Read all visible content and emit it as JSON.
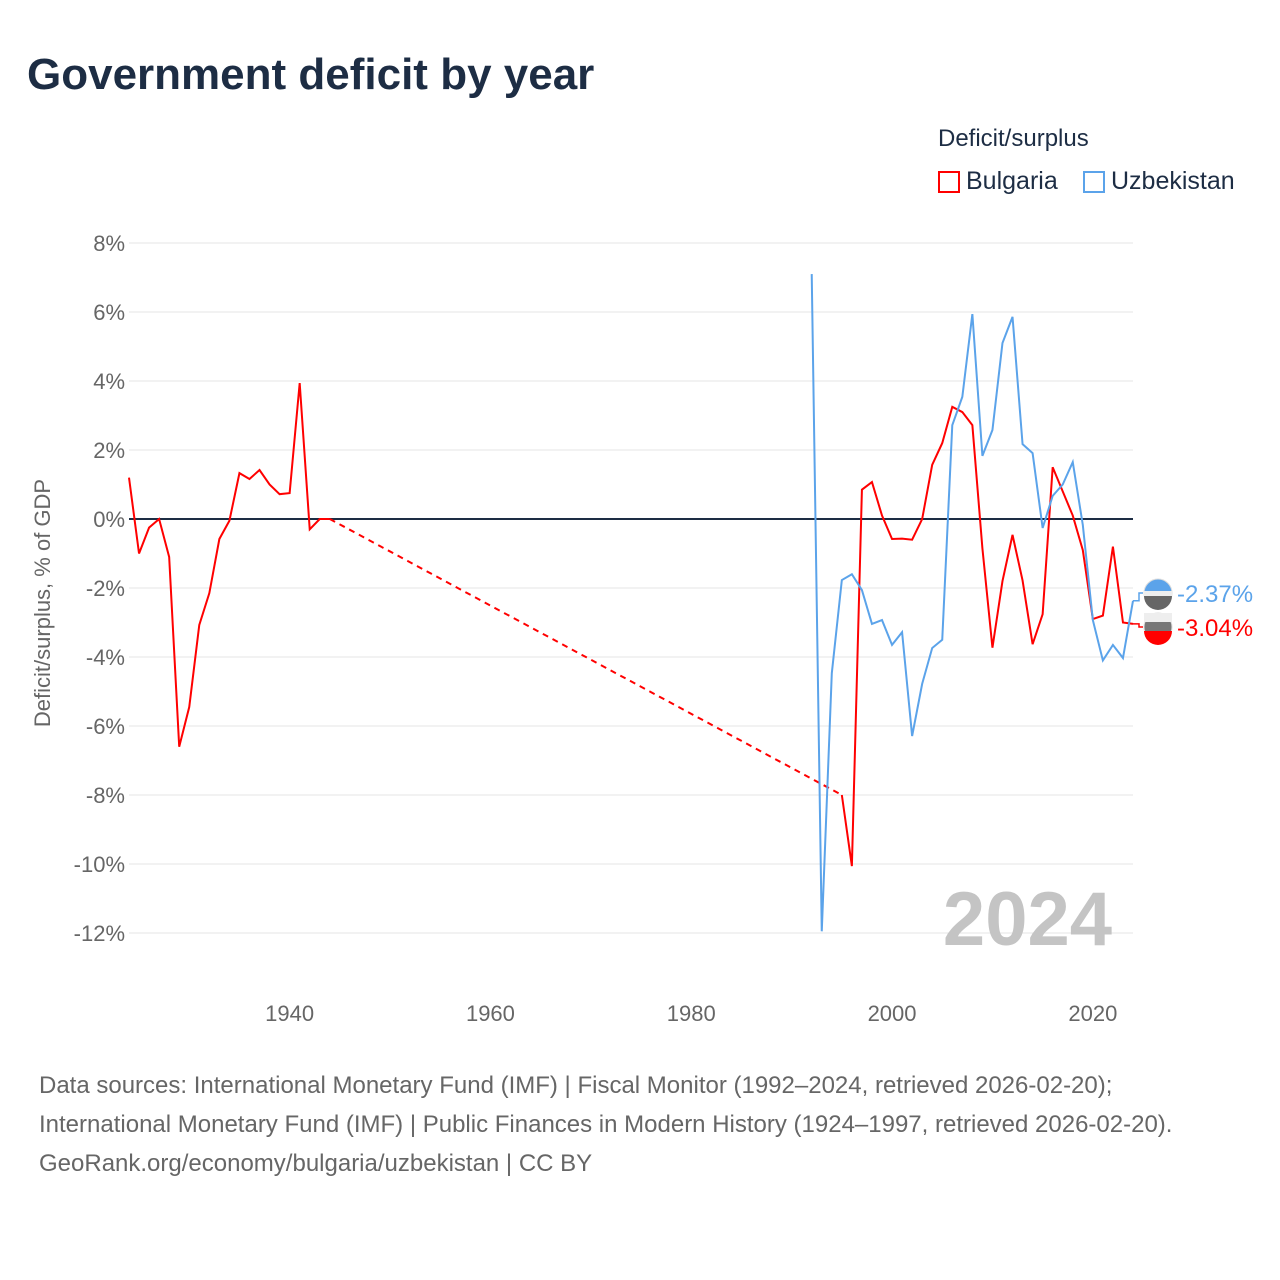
{
  "title": "Government deficit by year",
  "legend": {
    "title": "Deficit/surplus",
    "items": [
      {
        "name": "Bulgaria",
        "color": "#ff0000"
      },
      {
        "name": "Uzbekistan",
        "color": "#5ba3ea"
      }
    ]
  },
  "watermark_year": "2024",
  "footer": {
    "sources": "Data sources: International Monetary Fund (IMF) | Fiscal Monitor (1992–2024, retrieved 2026-02-20); International Monetary Fund (IMF) | Public Finances in Modern History (1924–1997, retrieved 2026-02-20).",
    "credit": "GeoRank.org/economy/bulgaria/uzbekistan | CC BY"
  },
  "chart_data": {
    "type": "line",
    "title": "Government deficit by year",
    "xlabel": "",
    "ylabel": "Deficit/surplus, % of GDP",
    "xlim": [
      1924,
      2024
    ],
    "ylim": [
      -12,
      8
    ],
    "x_ticks": [
      1940,
      1960,
      1980,
      2000,
      2020
    ],
    "y_ticks": [
      {
        "v": 8,
        "label": "8%"
      },
      {
        "v": 6,
        "label": "6%"
      },
      {
        "v": 4,
        "label": "4%"
      },
      {
        "v": 2,
        "label": "2%"
      },
      {
        "v": 0,
        "label": "0%"
      },
      {
        "v": -2,
        "label": "-2%"
      },
      {
        "v": -4,
        "label": "-4%"
      },
      {
        "v": -6,
        "label": "-6%"
      },
      {
        "v": -8,
        "label": "-8%"
      },
      {
        "v": -10,
        "label": "-10%"
      },
      {
        "v": -12,
        "label": "-12%"
      }
    ],
    "series": [
      {
        "name": "Bulgaria",
        "color": "#ff0000",
        "end_label": "-3.04%",
        "gap": [
          1944,
          1995
        ],
        "x": [
          1924,
          1925,
          1926,
          1927,
          1928,
          1929,
          1930,
          1931,
          1932,
          1933,
          1934,
          1935,
          1936,
          1937,
          1938,
          1939,
          1940,
          1941,
          1942,
          1943,
          1944,
          1995,
          1996,
          1997,
          1998,
          1999,
          2000,
          2001,
          2002,
          2003,
          2004,
          2005,
          2006,
          2007,
          2008,
          2009,
          2010,
          2011,
          2012,
          2013,
          2014,
          2015,
          2016,
          2017,
          2018,
          2019,
          2020,
          2021,
          2022,
          2023,
          2024
        ],
        "y": [
          1.2,
          -1.0,
          -0.25,
          0,
          -1.1,
          -6.6,
          -5.45,
          -3.07,
          -2.15,
          -0.58,
          -0.05,
          1.33,
          1.16,
          1.42,
          1.0,
          0.72,
          0.75,
          3.94,
          -0.3,
          0,
          0,
          -8.0,
          -10.06,
          0.85,
          1.07,
          0.1,
          -0.58,
          -0.57,
          -0.6,
          0,
          1.57,
          2.2,
          3.25,
          3.1,
          2.72,
          -0.85,
          -3.73,
          -1.8,
          -0.46,
          -1.78,
          -3.63,
          -2.76,
          1.5,
          0.8,
          0.1,
          -0.9,
          -2.9,
          -2.8,
          -0.8,
          -3.0,
          -3.04
        ]
      },
      {
        "name": "Uzbekistan",
        "color": "#5ba3ea",
        "end_label": "-2.37%",
        "x": [
          1992,
          1993,
          1994,
          1995,
          1996,
          1997,
          1998,
          1999,
          2000,
          2001,
          2002,
          2003,
          2004,
          2005,
          2006,
          2007,
          2008,
          2009,
          2010,
          2011,
          2012,
          2013,
          2014,
          2015,
          2016,
          2017,
          2018,
          2019,
          2020,
          2021,
          2022,
          2023,
          2024
        ],
        "y": [
          7.1,
          -11.95,
          -4.47,
          -1.77,
          -1.6,
          -2.06,
          -3.04,
          -2.93,
          -3.65,
          -3.28,
          -6.29,
          -4.78,
          -3.74,
          -3.5,
          2.72,
          3.54,
          5.94,
          1.83,
          2.58,
          5.1,
          5.86,
          2.17,
          1.91,
          -0.26,
          0.67,
          1.0,
          1.65,
          -0.17,
          -2.93,
          -4.1,
          -3.65,
          -4.03,
          -2.37
        ]
      }
    ]
  }
}
